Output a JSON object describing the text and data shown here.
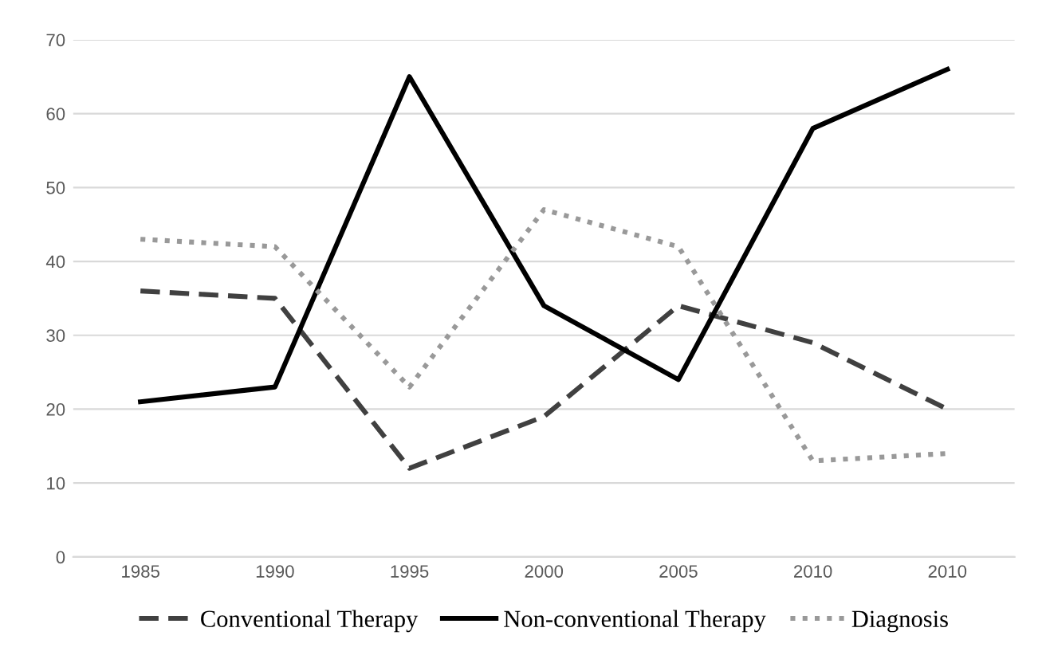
{
  "chart_data": {
    "type": "line",
    "categories": [
      "1985",
      "1990",
      "1995",
      "2000",
      "2005",
      "2010",
      "2010"
    ],
    "series": [
      {
        "name": "Conventional Therapy",
        "color": "#404040",
        "line_style": "dashed",
        "values": [
          36,
          35,
          12,
          19,
          34,
          29,
          20
        ]
      },
      {
        "name": "Non-conventional Therapy",
        "color": "#000000",
        "line_style": "solid",
        "values": [
          21,
          23,
          65,
          34,
          24,
          58,
          66
        ]
      },
      {
        "name": "Diagnosis",
        "color": "#999999",
        "line_style": "dotted",
        "values": [
          43,
          42,
          23,
          47,
          42,
          13,
          14
        ]
      }
    ],
    "ylim": [
      0,
      70
    ],
    "yticks": [
      0,
      10,
      20,
      30,
      40,
      50,
      60,
      70
    ],
    "grid": "y",
    "legend": "bottom",
    "marker": "none"
  }
}
